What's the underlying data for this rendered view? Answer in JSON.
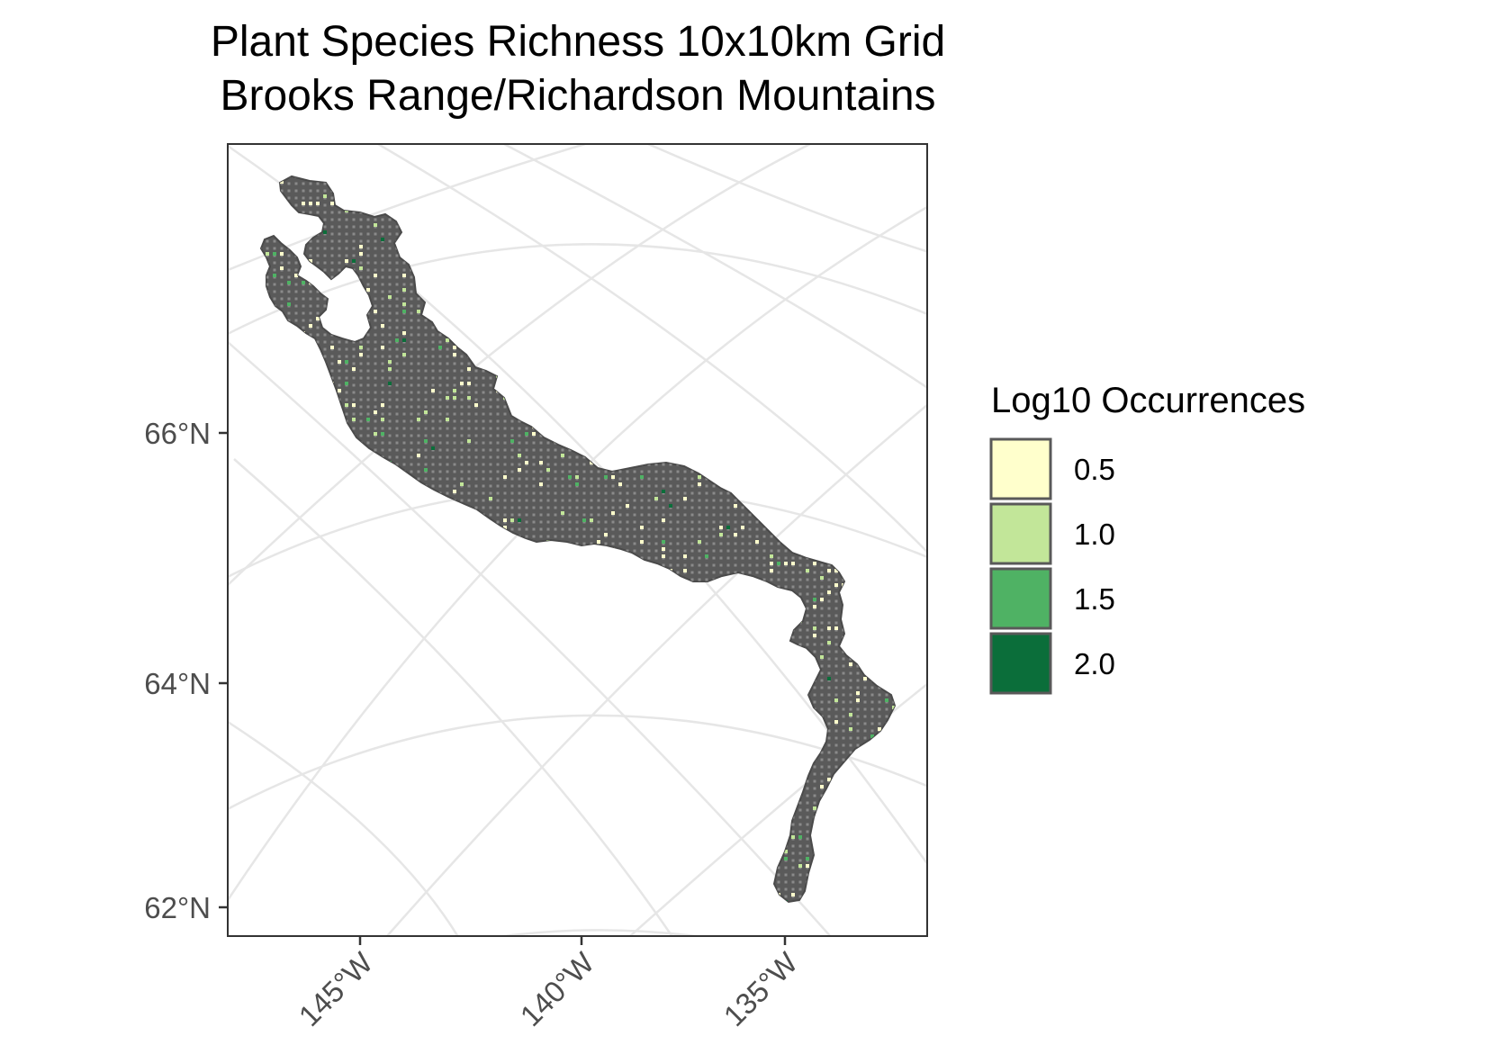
{
  "title": {
    "line1": "Plant Species Richness 10x10km Grid",
    "line2": "Brooks Range/Richardson Mountains"
  },
  "axes": {
    "y_ticks": [
      "66°N",
      "64°N",
      "62°N"
    ],
    "x_ticks": [
      "145°W",
      "140°W",
      "135°W"
    ]
  },
  "legend": {
    "title": "Log10 Occurrences",
    "items": [
      {
        "label": "0.5",
        "color": "#ffffcc",
        "value": 0.5
      },
      {
        "label": "1.0",
        "color": "#c2e699",
        "value": 1.0
      },
      {
        "label": "1.5",
        "color": "#4fb264",
        "value": 1.5
      },
      {
        "label": "2.0",
        "color": "#0b6e3a",
        "value": 2.0
      }
    ]
  },
  "colors": {
    "region_fill": "#5a5a5a",
    "grid_dot": "#8a8a8a",
    "graticule": "#e6e6e6",
    "panel_border": "#333333",
    "legend_key_border": "#595959"
  }
}
